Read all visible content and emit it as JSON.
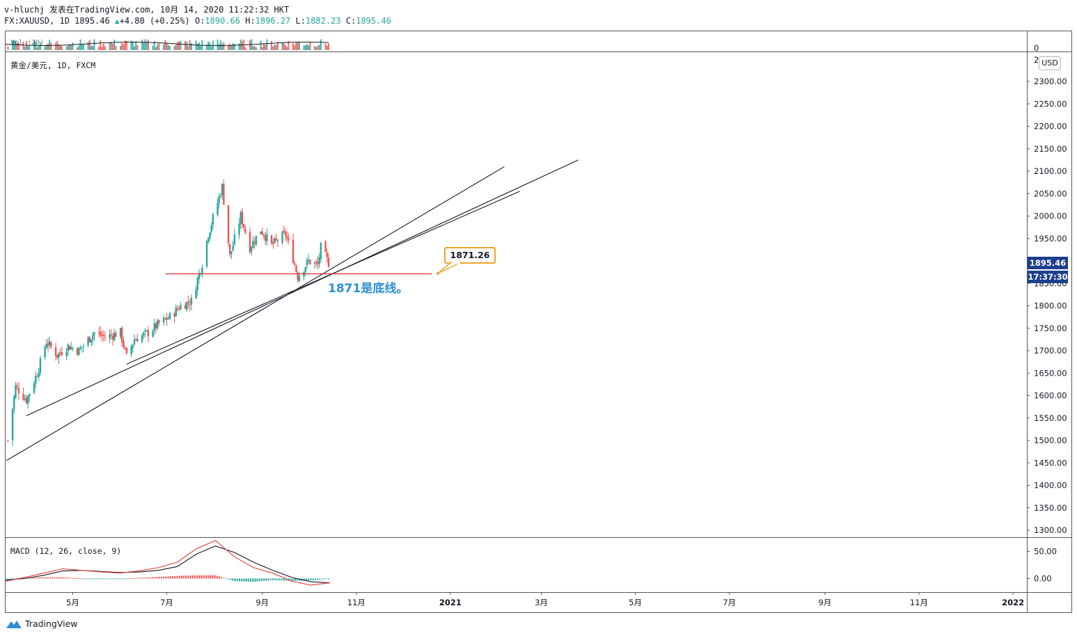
{
  "header": {
    "line1": "v-hluchj 发表在TradingView.com, 10月 14, 2020 11:22:32 HKT",
    "symbol": "FX:XAUUSD, 1D",
    "last": "1895.46",
    "change": "+4.80 (+0.25%)",
    "o_label": "O:",
    "o": "1890.66",
    "h_label": "H:",
    "h": "1896.27",
    "l_label": "L:",
    "l": "1882.23",
    "c_label": "C:",
    "c": "1895.46",
    "arrow": "▲"
  },
  "legend": {
    "main": "黄金/美元, 1D, FXCM",
    "vol": "Vol (20)",
    "macd": "MACD (12, 26, close, 9)"
  },
  "axis": {
    "currency": "USD",
    "vol_ticks": [
      "0",
      "2"
    ],
    "macd_ticks": [
      "50.00",
      "0.00"
    ],
    "time_ticks": [
      "5月",
      "7月",
      "9月",
      "11月",
      "2021",
      "3月",
      "5月",
      "7月",
      "9月",
      "11月",
      "2022"
    ],
    "price_tag": "1895.46",
    "countdown_tag": "17:37:30"
  },
  "annotation": {
    "callout": "1871.26",
    "note": "1871是底线。"
  },
  "footer": {
    "brand": "TradingView"
  },
  "colors": {
    "up": "#26a69a",
    "down": "#ef5350",
    "line": "#131722",
    "hline": "#d32f2f",
    "callout": "#f0a32b",
    "note": "#2d8fd5",
    "tag": "#1e3f8e"
  },
  "chart_data": {
    "type": "candlestick",
    "title": "黄金/美元, 1D, FXCM",
    "ylim": [
      1300,
      2300
    ],
    "y_ticks": [
      2300,
      2250,
      2200,
      2150,
      2100,
      2050,
      2000,
      1950,
      1900,
      1850,
      1800,
      1750,
      1700,
      1650,
      1600,
      1550,
      1500,
      1450,
      1400,
      1350,
      1300
    ],
    "x_range": [
      "2020-03-18",
      "2022-01-10"
    ],
    "close_path": [
      [
        "2020-03-20",
        1500
      ],
      [
        "2020-03-25",
        1620
      ],
      [
        "2020-04-01",
        1590
      ],
      [
        "2020-04-08",
        1650
      ],
      [
        "2020-04-14",
        1720
      ],
      [
        "2020-04-21",
        1690
      ],
      [
        "2020-04-28",
        1710
      ],
      [
        "2020-05-05",
        1700
      ],
      [
        "2020-05-15",
        1740
      ],
      [
        "2020-05-22",
        1730
      ],
      [
        "2020-06-01",
        1740
      ],
      [
        "2020-06-05",
        1685
      ],
      [
        "2020-06-10",
        1725
      ],
      [
        "2020-06-19",
        1740
      ],
      [
        "2020-06-26",
        1760
      ],
      [
        "2020-07-03",
        1775
      ],
      [
        "2020-07-10",
        1800
      ],
      [
        "2020-07-17",
        1810
      ],
      [
        "2020-07-24",
        1895
      ],
      [
        "2020-07-28",
        1960
      ],
      [
        "2020-08-06",
        2065
      ],
      [
        "2020-08-11",
        1910
      ],
      [
        "2020-08-18",
        2000
      ],
      [
        "2020-08-24",
        1930
      ],
      [
        "2020-08-31",
        1970
      ],
      [
        "2020-09-07",
        1935
      ],
      [
        "2020-09-16",
        1960
      ],
      [
        "2020-09-21",
        1905
      ],
      [
        "2020-09-24",
        1865
      ],
      [
        "2020-10-01",
        1900
      ],
      [
        "2020-10-07",
        1890
      ],
      [
        "2020-10-09",
        1930
      ],
      [
        "2020-10-14",
        1895.46
      ]
    ],
    "horizontal_line": 1871.26,
    "trendlines": [
      {
        "from": [
          "2020-03-19",
          1455
        ],
        "to": [
          "2021-02-05",
          2110
        ]
      },
      {
        "from": [
          "2020-04-01",
          1555
        ],
        "to": [
          "2021-03-25",
          2125
        ]
      },
      {
        "from": [
          "2020-06-05",
          1670
        ],
        "to": [
          "2021-02-15",
          2055
        ]
      }
    ],
    "macd": {
      "ylim": [
        -25,
        75
      ],
      "macd_line": [
        -5,
        2,
        10,
        18,
        15,
        12,
        10,
        14,
        20,
        30,
        55,
        70,
        40,
        20,
        10,
        -5,
        -12,
        -8
      ],
      "signal_line": [
        -3,
        0,
        6,
        14,
        15,
        13,
        11,
        12,
        15,
        22,
        45,
        60,
        48,
        30,
        15,
        2,
        -6,
        -8
      ]
    }
  }
}
